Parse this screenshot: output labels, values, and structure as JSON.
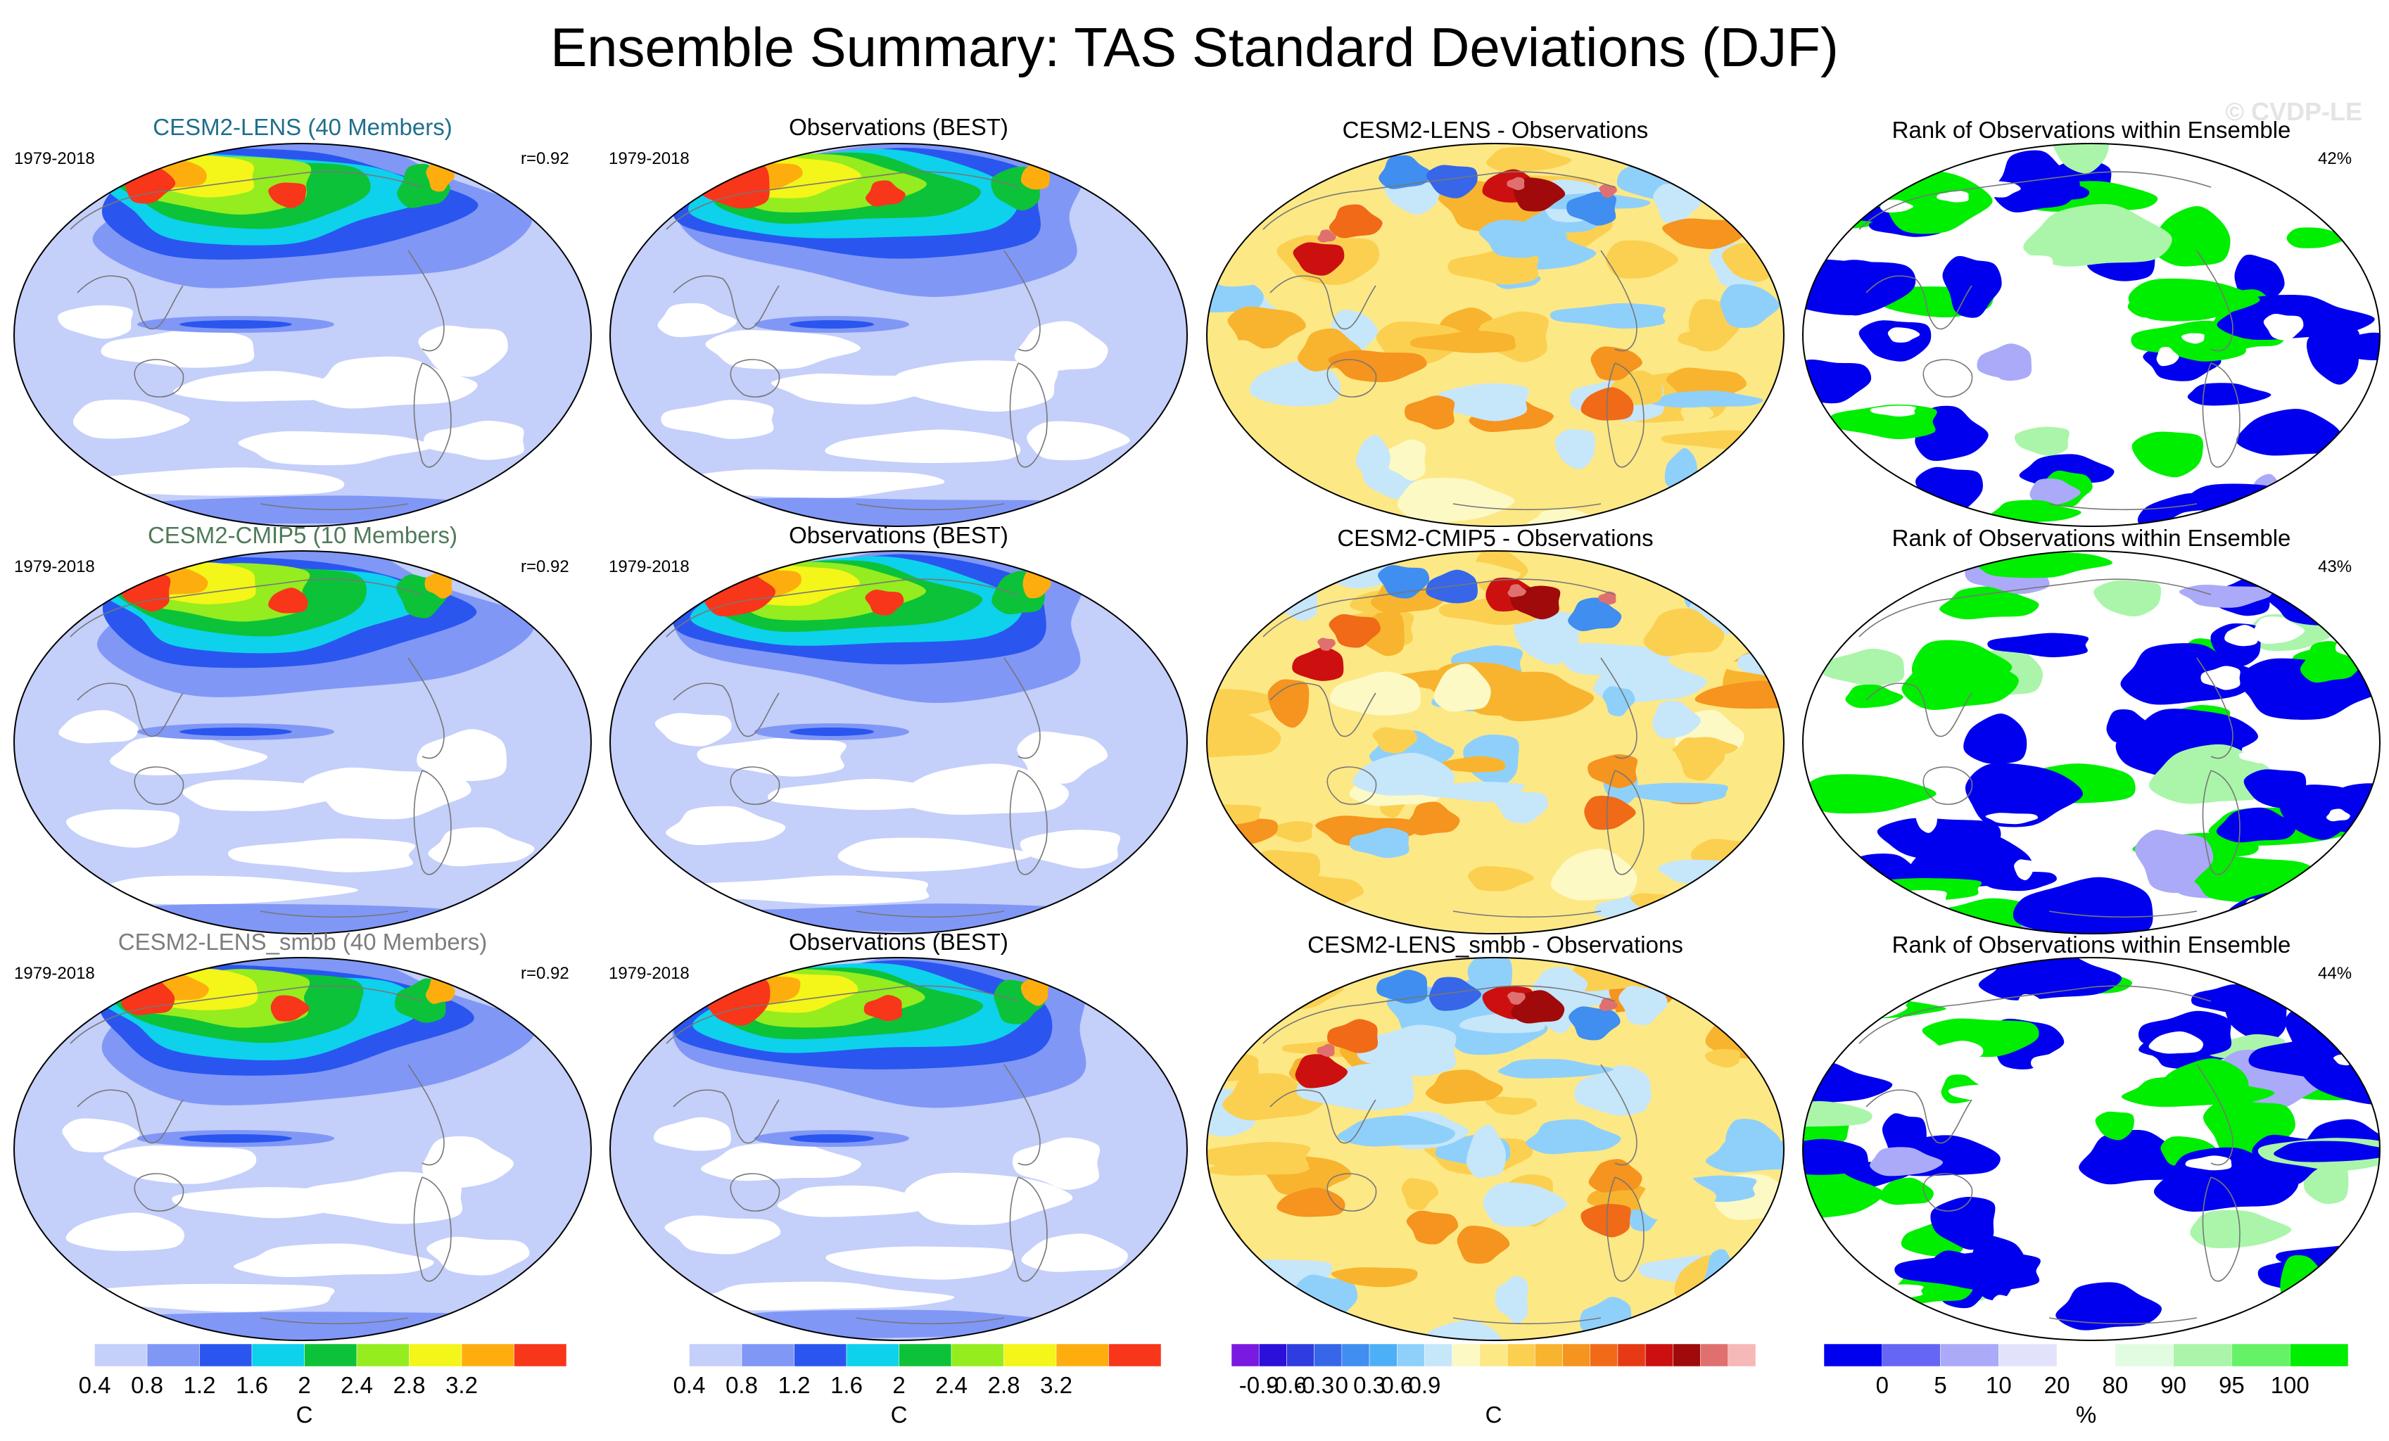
{
  "title": "Ensemble Summary: TAS Standard Deviations (DJF)",
  "watermark": "© CVDP-LE",
  "rows": [
    {
      "model_title": "CESM2-LENS (40 Members)",
      "model_title_color": "#1f6f8b",
      "period": "1979-2018",
      "pattern_corr": "r=0.92",
      "obs_title": "Observations (BEST)",
      "obs_period": "1979-2018",
      "diff_title": "CESM2-LENS - Observations",
      "rank_title": "Rank of Observations within Ensemble",
      "rank_percent": "42%"
    },
    {
      "model_title": "CESM2-CMIP5 (10 Members)",
      "model_title_color": "#4f7a58",
      "period": "1979-2018",
      "pattern_corr": "r=0.92",
      "obs_title": "Observations (BEST)",
      "obs_period": "1979-2018",
      "diff_title": "CESM2-CMIP5 - Observations",
      "rank_title": "Rank of Observations within Ensemble",
      "rank_percent": "43%"
    },
    {
      "model_title": "CESM2-LENS_smbb (40 Members)",
      "model_title_color": "#7d7d7d",
      "period": "1979-2018",
      "pattern_corr": "r=0.92",
      "obs_title": "Observations (BEST)",
      "obs_period": "1979-2018",
      "diff_title": "CESM2-LENS_smbb - Observations",
      "rank_title": "Rank of Observations within Ensemble",
      "rank_percent": "44%"
    }
  ],
  "colorbars": {
    "stddev": {
      "colors": [
        "#ffffff",
        "#c4cffa",
        "#8097f6",
        "#2a56ef",
        "#0ed1ec",
        "#0cc239",
        "#95ec1e",
        "#f4f518",
        "#fdae0e",
        "#f8361a"
      ],
      "labels": [
        "0.4",
        "0.8",
        "1.2",
        "1.6",
        "2",
        "2.4",
        "2.8",
        "3.2"
      ],
      "units": "C"
    },
    "difference": {
      "colors": [
        "#7a1ae0",
        "#2a10d8",
        "#2f3ce0",
        "#3766e8",
        "#3f8ef0",
        "#4db0f6",
        "#8fd0fa",
        "#c6e6fa",
        "#fdf9c4",
        "#fde886",
        "#fbd050",
        "#f8b42e",
        "#f5941e",
        "#f06a18",
        "#e63a14",
        "#cc1010",
        "#a00a0a",
        "#e07070",
        "#f7b8b8"
      ],
      "labels": [
        "-0.9",
        "-0.6",
        "-0.3",
        "0",
        "0.3",
        "0.6",
        "0.9"
      ],
      "units": "C"
    },
    "rank": {
      "colors": [
        "#0000ee",
        "#6666f4",
        "#aaaaf8",
        "#e2e2fc",
        "#ffffff",
        "#e2fce2",
        "#aaf5aa",
        "#66f266",
        "#00ee00"
      ],
      "labels": [
        "0",
        "5",
        "10",
        "20",
        "80",
        "90",
        "95",
        "100"
      ],
      "units": "%"
    }
  }
}
